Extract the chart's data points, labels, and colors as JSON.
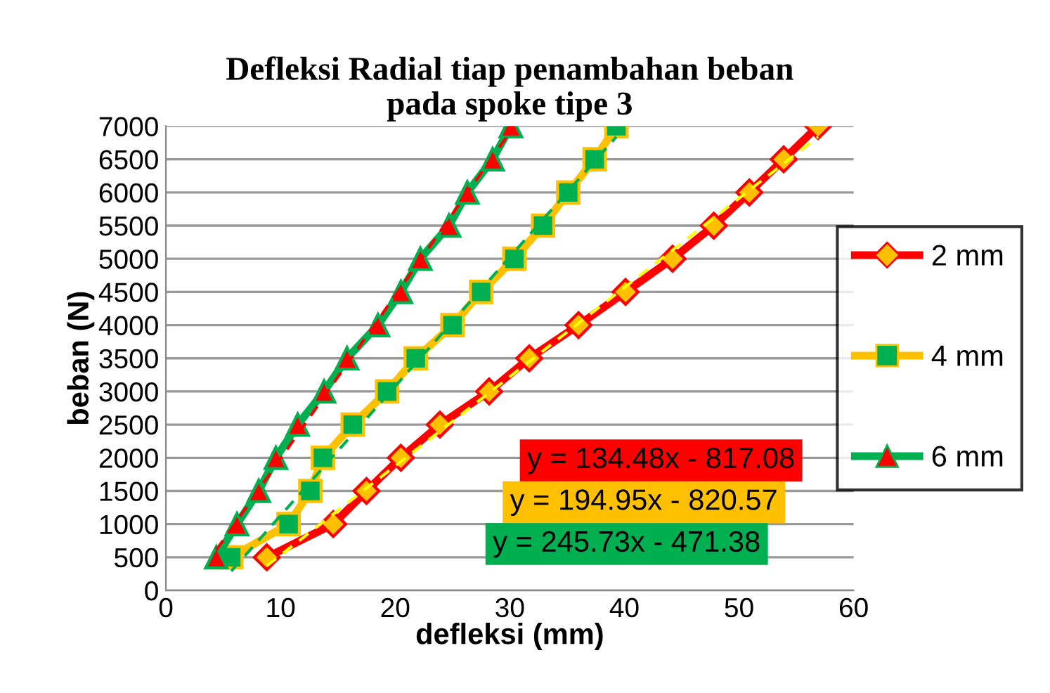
{
  "chart_data": {
    "type": "line",
    "title": "Defleksi Radial tiap penambahan beban\npada spoke tipe 3",
    "xlabel": "defleksi (mm)",
    "ylabel": "beban (N)",
    "series": [
      {
        "name": "2 mm",
        "color": "#ff0000",
        "marker": "diamond",
        "x": [
          8.8,
          14.6,
          17.5,
          20.5,
          23.9,
          28.2,
          31.7,
          36.0,
          40.1,
          44.2,
          47.8,
          50.9,
          53.9,
          56.9
        ],
        "values": [
          500,
          1000,
          1500,
          2000,
          2500,
          3000,
          3500,
          4000,
          4500,
          5000,
          5500,
          6000,
          6500,
          7000
        ]
      },
      {
        "name": "4 mm",
        "color": "#ffc000",
        "marker": "square",
        "x": [
          5.7,
          10.7,
          12.6,
          13.7,
          16.3,
          19.3,
          21.8,
          25.0,
          27.5,
          30.4,
          32.9,
          35.1,
          37.4,
          39.3
        ],
        "values": [
          500,
          1000,
          1500,
          2000,
          2500,
          3000,
          3500,
          4000,
          4500,
          5000,
          5500,
          6000,
          6500,
          7000
        ]
      },
      {
        "name": "6 mm",
        "color": "#00b050",
        "marker": "triangle",
        "x": [
          4.4,
          6.2,
          8.1,
          9.6,
          11.5,
          13.8,
          15.8,
          18.5,
          20.5,
          22.2,
          24.7,
          26.3,
          28.5,
          30.1
        ],
        "values": [
          500,
          1000,
          1500,
          2000,
          2500,
          3000,
          3500,
          4000,
          4500,
          5000,
          5500,
          6000,
          6500,
          7000
        ]
      },
      {
        "color": "#ffff00",
        "line_style": "dashed",
        "marker": "none",
        "x": [
          8.8,
          56.9
        ],
        "values": [
          370,
          6840
        ]
      },
      {
        "color": "#00b050",
        "line_style": "dashed",
        "marker": "none",
        "x": [
          5.7,
          39.3
        ],
        "values": [
          290,
          6840
        ]
      },
      {
        "color": "#ff0000",
        "line_style": "dashed",
        "marker": "none",
        "x": [
          4.4,
          30.1
        ],
        "values": [
          610,
          6930
        ]
      }
    ],
    "annotations": [
      "y = 134.48x - 817.08",
      "y = 194.95x - 820.57",
      "y = 245.73x - 471.38"
    ],
    "xlim": [
      0,
      60
    ],
    "xticks": [
      0,
      10,
      20,
      30,
      40,
      50,
      60
    ],
    "ylim": [
      0,
      7000
    ],
    "yticks": [
      0,
      500,
      1000,
      1500,
      2000,
      2500,
      3000,
      3500,
      4000,
      4500,
      5000,
      5500,
      6000,
      6500,
      7000
    ],
    "grid": "y",
    "legend": "right",
    "line_style": "solid"
  }
}
